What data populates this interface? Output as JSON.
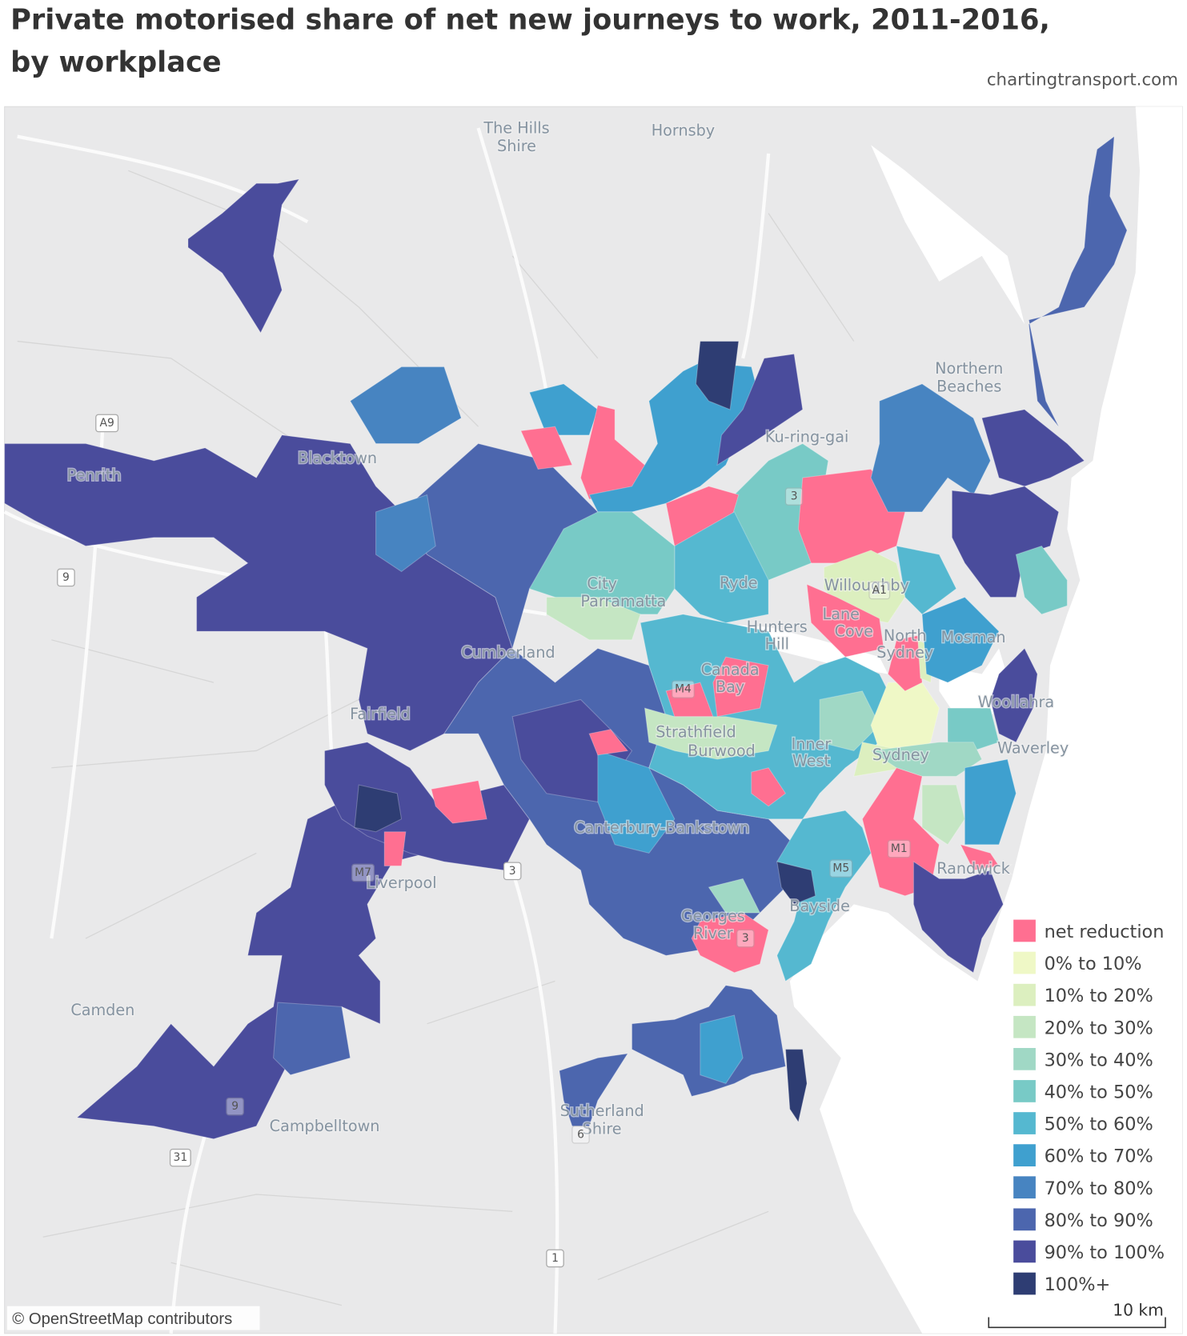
{
  "title": "Private motorised share of net new journeys to work, 2011-2016, by workplace",
  "source": "chartingtransport.com",
  "legend": [
    {
      "label": "net reduction",
      "color": "#ff6f91"
    },
    {
      "label": "0% to 10%",
      "color": "#eff8c6"
    },
    {
      "label": "10% to 20%",
      "color": "#dcefbf"
    },
    {
      "label": "20% to 30%",
      "color": "#c5e6c3"
    },
    {
      "label": "30% to 40%",
      "color": "#a0d8c5"
    },
    {
      "label": "40% to 50%",
      "color": "#78cac6"
    },
    {
      "label": "50% to 60%",
      "color": "#55b8d0"
    },
    {
      "label": "60% to 70%",
      "color": "#3fa0cf"
    },
    {
      "label": "70% to 80%",
      "color": "#4784c1"
    },
    {
      "label": "80% to 90%",
      "color": "#4c66ae"
    },
    {
      "label": "90% to 100%",
      "color": "#4a4c9c"
    },
    {
      "label": "100%+",
      "color": "#2e3d73"
    }
  ],
  "places": [
    [
      "The Hills",
      "Shire"
    ],
    [
      "Hornsby"
    ],
    [
      "Northern",
      "Beaches"
    ],
    [
      "Ku-ring-gai"
    ],
    [
      "Penrith"
    ],
    [
      "Blacktown"
    ],
    [
      "City",
      "Parramatta"
    ],
    [
      "Ryde"
    ],
    [
      "Willoughby"
    ],
    [
      "Lane",
      "Cove"
    ],
    [
      "Hunters",
      "Hill"
    ],
    [
      "North",
      "Sydney"
    ],
    [
      "Mosman"
    ],
    [
      "Canada",
      "Bay"
    ],
    [
      "Woollahra"
    ],
    [
      "Strathfield"
    ],
    [
      "Burwood"
    ],
    [
      "Inner",
      "West"
    ],
    [
      "Sydney"
    ],
    [
      "Waverley"
    ],
    [
      "Cumberland"
    ],
    [
      "Fairfield"
    ],
    [
      "Canterbury-Bankstown"
    ],
    [
      "Liverpool"
    ],
    [
      "Randwick"
    ],
    [
      "Bayside"
    ],
    [
      "Georges",
      "River"
    ],
    [
      "Camden"
    ],
    [
      "Campbelltown"
    ],
    [
      "Sutherland",
      "Shire"
    ]
  ],
  "road_labels": [
    "A9",
    "9",
    "M7",
    "3",
    "A1",
    "M4",
    "3",
    "M5",
    "M1",
    "3",
    "9",
    "31",
    "6",
    "1"
  ],
  "attribution": "© OpenStreetMap contributors",
  "scale": "10 km"
}
